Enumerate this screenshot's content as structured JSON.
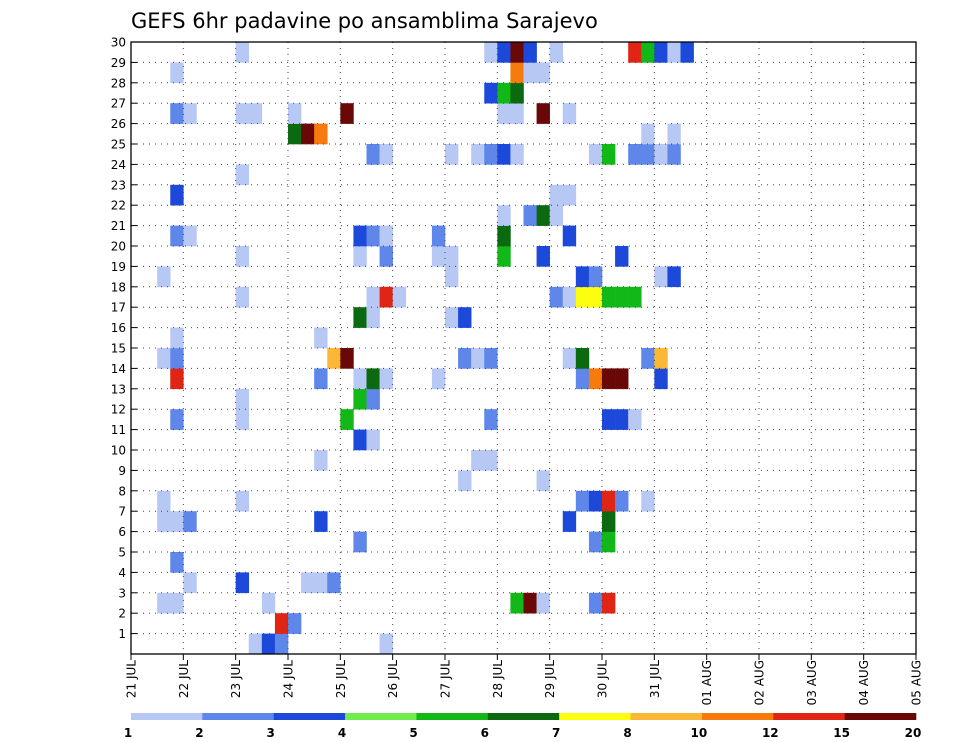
{
  "chart_data": {
    "type": "heatmap",
    "title": "GEFS 6hr padavine po ansamblima Sarajevo",
    "xlabel": "",
    "ylabel": "",
    "x_labels": [
      "21 JUL",
      "22 JUL",
      "23 JUL",
      "24 JUL",
      "25 JUL",
      "26 JUL",
      "27 JUL",
      "28 JUL",
      "29 JUL",
      "30 JUL",
      "31 JUL",
      "01 AUG",
      "02 AUG",
      "03 AUG",
      "04 AUG",
      "05 AUG"
    ],
    "x_range_steps": [
      0,
      60
    ],
    "y_labels": [
      "1",
      "2",
      "3",
      "4",
      "5",
      "6",
      "7",
      "8",
      "9",
      "10",
      "11",
      "12",
      "13",
      "14",
      "15",
      "16",
      "17",
      "18",
      "19",
      "20",
      "21",
      "22",
      "23",
      "24",
      "25",
      "26",
      "27",
      "28",
      "29",
      "30"
    ],
    "y_range": [
      0,
      30
    ],
    "grid": true,
    "colorbar": {
      "placement": "bottom",
      "colors": [
        "#b7c8f5",
        "#5f87e9",
        "#1d49da",
        "#71ec4d",
        "#12b817",
        "#0b690f",
        "#fdfd10",
        "#fdb737",
        "#f77a0d",
        "#e02515",
        "#6a0808"
      ],
      "labels": [
        "1",
        "2",
        "3",
        "4",
        "5",
        "6",
        "7",
        "8",
        "10",
        "12",
        "15",
        "20"
      ]
    },
    "cells": [
      [
        9,
        0,
        1
      ],
      [
        10,
        0,
        3
      ],
      [
        11,
        0,
        2
      ],
      [
        19,
        0,
        1
      ],
      [
        11,
        1,
        12
      ],
      [
        12,
        1,
        2
      ],
      [
        2,
        2,
        1
      ],
      [
        3,
        2,
        1
      ],
      [
        10,
        2,
        1
      ],
      [
        29,
        2,
        5
      ],
      [
        30,
        2,
        15
      ],
      [
        31,
        2,
        1
      ],
      [
        35,
        2,
        2
      ],
      [
        36,
        2,
        12
      ],
      [
        4,
        3,
        1
      ],
      [
        8,
        3,
        3
      ],
      [
        13,
        3,
        1
      ],
      [
        14,
        3,
        1
      ],
      [
        15,
        3,
        2
      ],
      [
        3,
        4,
        2
      ],
      [
        17,
        5,
        2
      ],
      [
        35,
        5,
        2
      ],
      [
        36,
        5,
        5
      ],
      [
        2,
        6,
        1
      ],
      [
        3,
        6,
        1
      ],
      [
        4,
        6,
        2
      ],
      [
        14,
        6,
        3
      ],
      [
        33,
        6,
        3
      ],
      [
        36,
        6,
        6
      ],
      [
        2,
        7,
        1
      ],
      [
        8,
        7,
        1
      ],
      [
        34,
        7,
        2
      ],
      [
        35,
        7,
        3
      ],
      [
        36,
        7,
        12
      ],
      [
        37,
        7,
        2
      ],
      [
        39,
        7,
        1
      ],
      [
        25,
        8,
        1
      ],
      [
        31,
        8,
        1
      ],
      [
        14,
        9,
        1
      ],
      [
        26,
        9,
        1
      ],
      [
        27,
        9,
        1
      ],
      [
        17,
        10,
        3
      ],
      [
        18,
        10,
        1
      ],
      [
        3,
        11,
        2
      ],
      [
        8,
        11,
        1
      ],
      [
        16,
        11,
        5
      ],
      [
        27,
        11,
        2
      ],
      [
        36,
        11,
        3
      ],
      [
        37,
        11,
        3
      ],
      [
        38,
        11,
        1
      ],
      [
        8,
        12,
        1
      ],
      [
        17,
        12,
        5
      ],
      [
        18,
        12,
        2
      ],
      [
        3,
        13,
        12
      ],
      [
        14,
        13,
        2
      ],
      [
        17,
        13,
        1
      ],
      [
        18,
        13,
        6
      ],
      [
        19,
        13,
        1
      ],
      [
        23,
        13,
        1
      ],
      [
        34,
        13,
        2
      ],
      [
        35,
        13,
        10
      ],
      [
        36,
        13,
        20
      ],
      [
        37,
        13,
        15
      ],
      [
        40,
        13,
        3
      ],
      [
        2,
        14,
        1
      ],
      [
        3,
        14,
        2
      ],
      [
        15,
        14,
        8
      ],
      [
        16,
        14,
        20
      ],
      [
        25,
        14,
        2
      ],
      [
        26,
        14,
        1
      ],
      [
        27,
        14,
        2
      ],
      [
        33,
        14,
        1
      ],
      [
        34,
        14,
        6
      ],
      [
        39,
        14,
        2
      ],
      [
        40,
        14,
        8
      ],
      [
        3,
        15,
        1
      ],
      [
        14,
        15,
        1
      ],
      [
        17,
        16,
        6
      ],
      [
        18,
        16,
        1
      ],
      [
        24,
        16,
        1
      ],
      [
        25,
        16,
        3
      ],
      [
        8,
        17,
        1
      ],
      [
        18,
        17,
        1
      ],
      [
        19,
        17,
        12
      ],
      [
        20,
        17,
        1
      ],
      [
        32,
        17,
        2
      ],
      [
        33,
        17,
        1
      ],
      [
        34,
        17,
        7
      ],
      [
        35,
        17,
        7
      ],
      [
        36,
        17,
        5
      ],
      [
        37,
        17,
        5
      ],
      [
        38,
        17,
        5
      ],
      [
        2,
        18,
        1
      ],
      [
        24,
        18,
        1
      ],
      [
        34,
        18,
        3
      ],
      [
        35,
        18,
        2
      ],
      [
        40,
        18,
        1
      ],
      [
        41,
        18,
        3
      ],
      [
        8,
        19,
        1
      ],
      [
        17,
        19,
        1
      ],
      [
        19,
        19,
        2
      ],
      [
        23,
        19,
        1
      ],
      [
        24,
        19,
        1
      ],
      [
        28,
        19,
        5
      ],
      [
        31,
        19,
        3
      ],
      [
        37,
        19,
        3
      ],
      [
        3,
        20,
        2
      ],
      [
        4,
        20,
        1
      ],
      [
        17,
        20,
        3
      ],
      [
        18,
        20,
        2
      ],
      [
        19,
        20,
        1
      ],
      [
        23,
        20,
        2
      ],
      [
        28,
        20,
        6
      ],
      [
        33,
        20,
        3
      ],
      [
        28,
        21,
        1
      ],
      [
        30,
        21,
        2
      ],
      [
        31,
        21,
        6
      ],
      [
        32,
        21,
        1
      ],
      [
        3,
        22,
        3
      ],
      [
        32,
        22,
        1
      ],
      [
        33,
        22,
        1
      ],
      [
        8,
        23,
        1
      ],
      [
        18,
        24,
        2
      ],
      [
        19,
        24,
        1
      ],
      [
        24,
        24,
        1
      ],
      [
        26,
        24,
        1
      ],
      [
        27,
        24,
        2
      ],
      [
        28,
        24,
        3
      ],
      [
        29,
        24,
        1
      ],
      [
        35,
        24,
        1
      ],
      [
        36,
        24,
        5
      ],
      [
        38,
        24,
        2
      ],
      [
        39,
        24,
        2
      ],
      [
        40,
        24,
        1
      ],
      [
        41,
        24,
        2
      ],
      [
        12,
        25,
        6
      ],
      [
        13,
        25,
        20
      ],
      [
        14,
        25,
        10
      ],
      [
        39,
        25,
        1
      ],
      [
        41,
        25,
        1
      ],
      [
        3,
        26,
        2
      ],
      [
        4,
        26,
        1
      ],
      [
        8,
        26,
        1
      ],
      [
        9,
        26,
        1
      ],
      [
        12,
        26,
        1
      ],
      [
        16,
        26,
        15
      ],
      [
        28,
        26,
        1
      ],
      [
        29,
        26,
        1
      ],
      [
        31,
        26,
        20
      ],
      [
        33,
        26,
        1
      ],
      [
        27,
        27,
        3
      ],
      [
        28,
        27,
        5
      ],
      [
        29,
        27,
        6
      ],
      [
        3,
        28,
        1
      ],
      [
        29,
        28,
        10
      ],
      [
        30,
        28,
        1
      ],
      [
        31,
        28,
        1
      ],
      [
        8,
        29,
        1
      ],
      [
        27,
        29,
        1
      ],
      [
        28,
        29,
        3
      ],
      [
        29,
        29,
        15
      ],
      [
        30,
        29,
        3
      ],
      [
        32,
        29,
        1
      ],
      [
        38,
        29,
        12
      ],
      [
        39,
        29,
        5
      ],
      [
        40,
        29,
        3
      ],
      [
        41,
        29,
        1
      ],
      [
        42,
        29,
        3
      ]
    ]
  }
}
